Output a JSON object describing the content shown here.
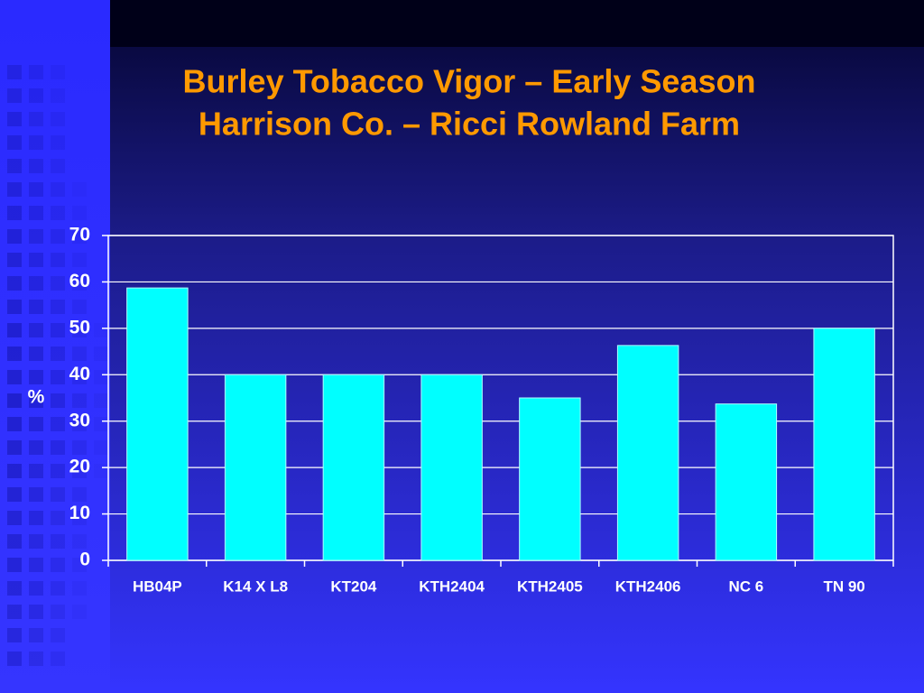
{
  "chart_data": {
    "type": "bar",
    "title": "Burley Tobacco Vigor – Early Season",
    "subtitle": "Harrison Co. – Ricci Rowland Farm",
    "y_label": "%",
    "categories": [
      "HB04P",
      "K14 X L8",
      "KT204",
      "KTH2404",
      "KTH2405",
      "KTH2406",
      "NC 6",
      "TN 90"
    ],
    "values": [
      58.7,
      40,
      40,
      40,
      35,
      46.3,
      33.7,
      50
    ],
    "color": "#00ffff",
    "ylim": [
      0,
      70
    ],
    "yticks": [
      0,
      10,
      20,
      30,
      40,
      50,
      60,
      70
    ],
    "grid": true
  }
}
